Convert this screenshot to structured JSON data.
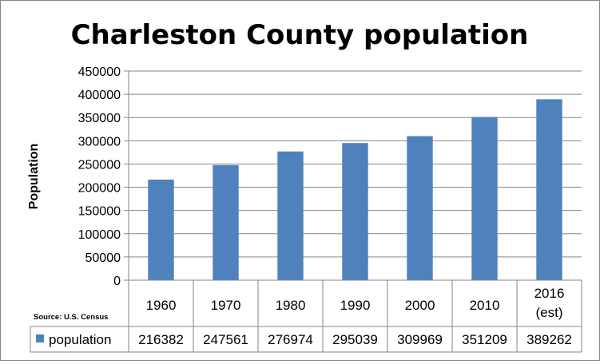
{
  "chart_data": {
    "type": "bar",
    "title": "Charleston County population",
    "ylabel": "Population",
    "xlabel": "",
    "source_note": "Source: U.S. Census",
    "categories": [
      [
        "1960"
      ],
      [
        "1970"
      ],
      [
        "1980"
      ],
      [
        "1990"
      ],
      [
        "2000"
      ],
      [
        "2010"
      ],
      [
        "2016",
        "(est)"
      ]
    ],
    "series": [
      {
        "name": "population",
        "color": "#4F81BD",
        "values": [
          216382,
          247561,
          276974,
          295039,
          309969,
          351209,
          389262
        ]
      }
    ],
    "ylim": [
      0,
      450000
    ],
    "yticks": [
      "0",
      "50000",
      "100000",
      "150000",
      "200000",
      "250000",
      "300000",
      "350000",
      "400000",
      "450000"
    ],
    "grid": true,
    "legend": "data-table",
    "data_table": true
  }
}
